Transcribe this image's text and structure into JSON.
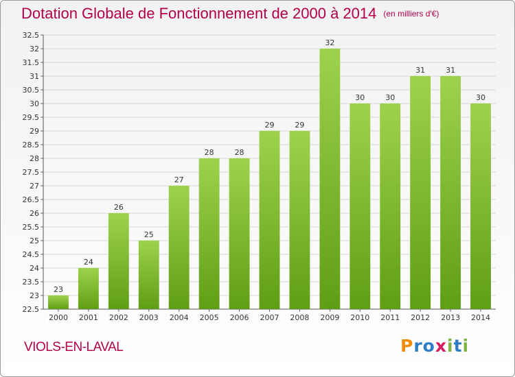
{
  "title": "Dotation Globale de Fonctionnement de 2000 à 2014",
  "subtitle": "(en milliers d'€)",
  "commune": "VIOLS-EN-LAVAL",
  "logo": {
    "letters": [
      "P",
      "r",
      "o",
      "x",
      "i",
      "t",
      "i"
    ],
    "colors": [
      "#f28c00",
      "#2e7dc4",
      "#2e7dc4",
      "#d81b60",
      "#7cb342",
      "#2e7dc4",
      "#7cb342"
    ]
  },
  "colors": {
    "bar_light": "#9ed24d",
    "bar_dark": "#5f9e14",
    "grid": "#d6d6d6",
    "accent": "#b2004a"
  },
  "chart_data": {
    "type": "bar",
    "title": "Dotation Globale de Fonctionnement de 2000 à 2014",
    "subtitle": "(en milliers d'€)",
    "xlabel": "",
    "ylabel": "",
    "categories": [
      "2000",
      "2001",
      "2002",
      "2003",
      "2004",
      "2005",
      "2006",
      "2007",
      "2008",
      "2009",
      "2010",
      "2011",
      "2012",
      "2013",
      "2014"
    ],
    "values": [
      23,
      24,
      26,
      25,
      27,
      28,
      28,
      29,
      29,
      32,
      30,
      30,
      31,
      31,
      30
    ],
    "data_labels": [
      "23",
      "24",
      "26",
      "25",
      "27",
      "28",
      "28",
      "29",
      "29",
      "32",
      "30",
      "30",
      "31",
      "31",
      "30"
    ],
    "ylim": [
      22.5,
      32.5
    ],
    "yticks": [
      "22.5",
      "23",
      "23.5",
      "24",
      "24.5",
      "25",
      "25.5",
      "26",
      "26.5",
      "27",
      "27.5",
      "28",
      "28.5",
      "29",
      "29.5",
      "30",
      "30.5",
      "31",
      "31.5",
      "32",
      "32.5"
    ],
    "ytick_values": [
      22.5,
      23,
      23.5,
      24,
      24.5,
      25,
      25.5,
      26,
      26.5,
      27,
      27.5,
      28,
      28.5,
      29,
      29.5,
      30,
      30.5,
      31,
      31.5,
      32,
      32.5
    ],
    "grid": true,
    "legend": "none"
  }
}
